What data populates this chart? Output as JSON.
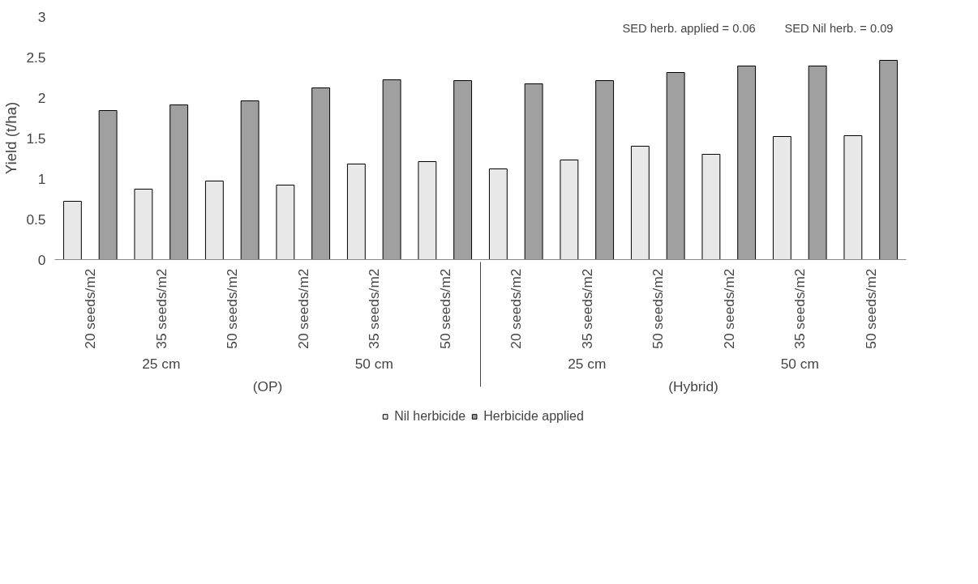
{
  "chart_data": {
    "type": "bar",
    "ylabel": "Yield (t/ha)",
    "categories": [
      "20 seeds/m2",
      "35 seeds/m2",
      "50 seeds/m2",
      "20 seeds/m2",
      "35 seeds/m2",
      "50 seeds/m2",
      "20 seeds/m2",
      "35 seeds/m2",
      "50 seeds/m2",
      "20 seeds/m2",
      "35 seeds/m2",
      "50 seeds/m2"
    ],
    "series": [
      {
        "name": "Nil herbicide",
        "color": "#e8e8e8",
        "values": [
          0.72,
          0.87,
          0.97,
          0.92,
          1.18,
          1.21,
          1.12,
          1.23,
          1.4,
          1.3,
          1.52,
          1.53
        ]
      },
      {
        "name": "Herbicide applied",
        "color": "#a0a0a0",
        "values": [
          1.84,
          1.91,
          1.96,
          2.12,
          2.22,
          2.21,
          2.17,
          2.21,
          2.31,
          2.39,
          2.39,
          2.46
        ]
      }
    ],
    "ylim": [
      0,
      3
    ],
    "yticks": [
      0,
      0.5,
      1,
      1.5,
      2,
      2.5,
      3
    ],
    "grid": false,
    "legend": "bottom",
    "annotations": [
      "SED herb. applied = 0.06",
      "SED Nil herb. = 0.09",
      "25 cm",
      "50 cm",
      "25 cm",
      "50 cm",
      "(OP)",
      "(Hybrid)"
    ]
  }
}
